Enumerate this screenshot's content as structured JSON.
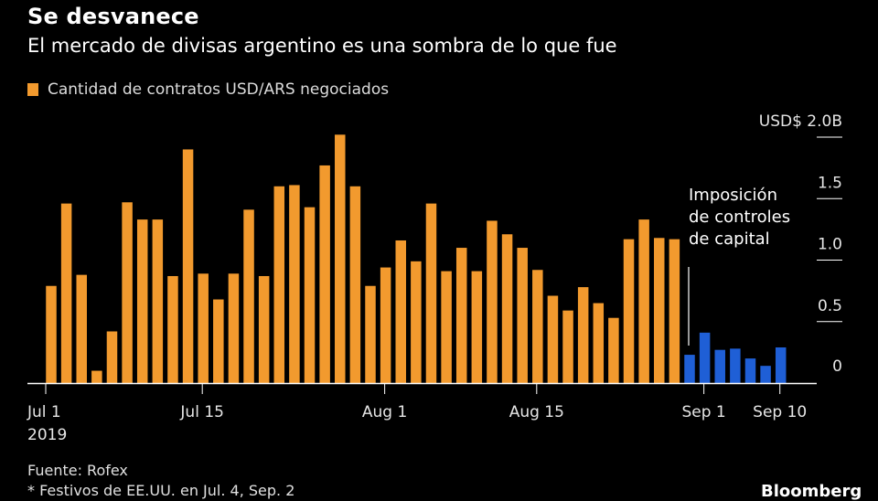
{
  "header": {
    "title": "Se desvanece",
    "subtitle": "El mercado de divisas argentino es una sombra de lo que fue"
  },
  "legend": {
    "label": "Cantidad de contratos USD/ARS negociados",
    "color": "#f29a2e"
  },
  "annotation": {
    "lines": [
      "Imposición",
      "de controles",
      "de capital"
    ]
  },
  "footer": {
    "source": "Fuente: Rofex",
    "note": "* Festivos de EE.UU. en Jul. 4, Sep. 2",
    "brand": "Bloomberg"
  },
  "chart_data": {
    "type": "bar",
    "title": "Se desvanece",
    "subtitle": "El mercado de divisas argentino es una sombra de lo que fue",
    "ylabel": "",
    "ylim": [
      0,
      2.0
    ],
    "unit": "USD$ B",
    "y_ticks": [
      {
        "value": 0,
        "label": "0"
      },
      {
        "value": 0.5,
        "label": "0.5"
      },
      {
        "value": 1.0,
        "label": "1.0"
      },
      {
        "value": 1.5,
        "label": "1.5"
      },
      {
        "value": 2.0,
        "label": "USD$  2.0B"
      }
    ],
    "x_ticks": [
      {
        "index": 0,
        "label": "Jul 1",
        "sublabel": "2019"
      },
      {
        "index": 10,
        "label": "Jul 15"
      },
      {
        "index": 22,
        "label": "Aug 1"
      },
      {
        "index": 32,
        "label": "Aug 15"
      },
      {
        "index": 43,
        "label": "Sep 1"
      },
      {
        "index": 48,
        "label": "Sep 10"
      }
    ],
    "colors": {
      "before": "#f29a2e",
      "after": "#1f5fd6"
    },
    "annotation_index": 43,
    "series": [
      {
        "name": "Cantidad de contratos USD/ARS negociados",
        "values": [
          0.79,
          1.46,
          0.88,
          0.1,
          0.42,
          1.47,
          1.33,
          1.33,
          0.87,
          1.9,
          0.89,
          0.68,
          0.89,
          1.41,
          0.87,
          1.6,
          1.61,
          1.43,
          1.77,
          2.02,
          1.6,
          0.79,
          0.94,
          1.16,
          0.99,
          1.46,
          0.91,
          1.1,
          0.91,
          1.32,
          1.21,
          1.1,
          0.92,
          0.71,
          0.59,
          0.78,
          0.65,
          0.53,
          1.17,
          1.33,
          1.18,
          1.17,
          0.23,
          0.41,
          0.27,
          0.28,
          0.2,
          0.14,
          0.29
        ],
        "colored_after_index": 42
      }
    ]
  }
}
